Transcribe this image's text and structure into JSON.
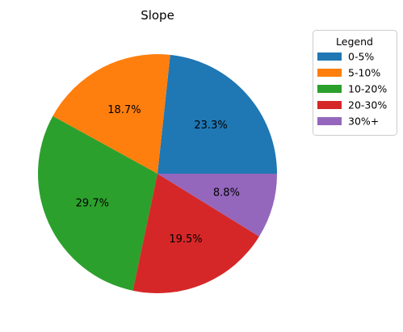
{
  "chart_data": {
    "type": "pie",
    "title": "Slope",
    "start_angle_deg": 0,
    "direction": "counterclockwise",
    "slices": [
      {
        "label": "0-5%",
        "value": 23.3,
        "color": "#1f77b4"
      },
      {
        "label": "5-10%",
        "value": 18.7,
        "color": "#ff7f0e"
      },
      {
        "label": "10-20%",
        "value": 29.7,
        "color": "#2ca02c"
      },
      {
        "label": "20-30%",
        "value": 19.5,
        "color": "#d62728"
      },
      {
        "label": "30%+",
        "value": 8.8,
        "color": "#9467bd"
      }
    ],
    "legend": {
      "title": "Legend",
      "placement": "upper-right outside"
    }
  }
}
